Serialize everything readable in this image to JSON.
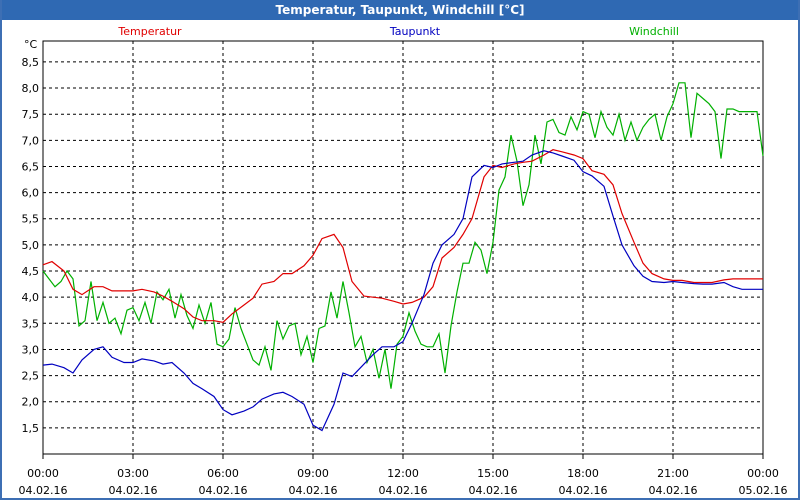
{
  "window": {
    "title": "Temperatur, Taupunkt, Windchill [°C]"
  },
  "colors": {
    "temperatur": "#e00000",
    "taupunkt": "#0000c0",
    "windchill": "#00b000",
    "grid": "#000000",
    "titlebar": "#2f69b3"
  },
  "chart_data": {
    "type": "line",
    "title": "Temperatur, Taupunkt, Windchill [°C]",
    "unit_label": "°C",
    "ylim": [
      1.0,
      8.9
    ],
    "yticks": [
      1.5,
      2.0,
      2.5,
      3.0,
      3.5,
      4.0,
      4.5,
      5.0,
      5.5,
      6.0,
      6.5,
      7.0,
      7.5,
      8.0,
      8.5
    ],
    "ytick_labels": [
      "1,5",
      "2,0",
      "2,5",
      "3,0",
      "3,5",
      "4,0",
      "4,5",
      "5,0",
      "5,5",
      "6,0",
      "6,5",
      "7,0",
      "7,5",
      "8,0",
      "8,5"
    ],
    "xlim": [
      0,
      24
    ],
    "xticks": [
      0,
      3,
      6,
      9,
      12,
      15,
      18,
      21,
      24
    ],
    "xtick_times": [
      "00:00",
      "03:00",
      "06:00",
      "09:00",
      "12:00",
      "15:00",
      "18:00",
      "21:00",
      "00:00"
    ],
    "xtick_dates": [
      "04.02.16",
      "04.02.16",
      "04.02.16",
      "04.02.16",
      "04.02.16",
      "04.02.16",
      "04.02.16",
      "04.02.16",
      "05.02.16"
    ],
    "grid": true,
    "legend_position": "top",
    "series": [
      {
        "name": "Temperatur",
        "x": [
          0,
          0.3,
          0.7,
          1,
          1.3,
          1.7,
          2,
          2.3,
          2.7,
          3,
          3.3,
          3.7,
          4,
          4.3,
          4.7,
          5,
          5.3,
          5.7,
          6,
          6.3,
          6.7,
          7,
          7.3,
          7.7,
          8,
          8.3,
          8.7,
          9,
          9.3,
          9.7,
          10,
          10.3,
          10.7,
          11,
          11.3,
          11.7,
          12,
          12.3,
          12.7,
          13,
          13.3,
          13.7,
          14,
          14.3,
          14.7,
          15,
          15.3,
          15.7,
          16,
          16.3,
          16.7,
          17,
          17.3,
          17.7,
          18,
          18.3,
          18.7,
          19,
          19.3,
          19.7,
          20,
          20.3,
          20.7,
          21,
          21.3,
          21.7,
          22,
          22.3,
          22.7,
          23,
          23.3,
          23.7,
          24
        ],
        "values": [
          4.62,
          4.68,
          4.5,
          4.15,
          4.05,
          4.2,
          4.2,
          4.12,
          4.12,
          4.12,
          4.15,
          4.1,
          4.02,
          3.92,
          3.78,
          3.62,
          3.55,
          3.55,
          3.52,
          3.68,
          3.85,
          3.98,
          4.25,
          4.3,
          4.45,
          4.45,
          4.6,
          4.8,
          5.12,
          5.2,
          4.95,
          4.3,
          4.02,
          4.0,
          3.98,
          3.92,
          3.87,
          3.9,
          4.0,
          4.2,
          4.75,
          4.95,
          5.2,
          5.5,
          6.3,
          6.52,
          6.48,
          6.55,
          6.58,
          6.6,
          6.72,
          6.82,
          6.78,
          6.72,
          6.65,
          6.42,
          6.35,
          6.15,
          5.6,
          5.05,
          4.65,
          4.45,
          4.35,
          4.32,
          4.32,
          4.28,
          4.28,
          4.28,
          4.33,
          4.35,
          4.35,
          4.35,
          4.35
        ]
      },
      {
        "name": "Taupunkt",
        "x": [
          0,
          0.3,
          0.7,
          1,
          1.3,
          1.7,
          2,
          2.3,
          2.7,
          3,
          3.3,
          3.7,
          4,
          4.3,
          4.7,
          5,
          5.3,
          5.7,
          6,
          6.3,
          6.7,
          7,
          7.3,
          7.7,
          8,
          8.3,
          8.7,
          9,
          9.3,
          9.7,
          10,
          10.3,
          10.7,
          11,
          11.3,
          11.7,
          12,
          12.3,
          12.7,
          13,
          13.3,
          13.7,
          14,
          14.3,
          14.7,
          15,
          15.3,
          15.7,
          16,
          16.3,
          16.7,
          17,
          17.3,
          17.7,
          18,
          18.3,
          18.7,
          19,
          19.3,
          19.7,
          20,
          20.3,
          20.7,
          21,
          21.3,
          21.7,
          22,
          22.3,
          22.7,
          23,
          23.3,
          23.7,
          24
        ],
        "values": [
          2.7,
          2.72,
          2.65,
          2.55,
          2.8,
          3.0,
          3.05,
          2.85,
          2.75,
          2.75,
          2.82,
          2.78,
          2.72,
          2.75,
          2.55,
          2.35,
          2.25,
          2.1,
          1.85,
          1.75,
          1.82,
          1.9,
          2.05,
          2.15,
          2.18,
          2.1,
          1.95,
          1.55,
          1.45,
          1.95,
          2.55,
          2.48,
          2.72,
          2.9,
          3.05,
          3.05,
          3.15,
          3.5,
          4.05,
          4.65,
          5.0,
          5.2,
          5.5,
          6.3,
          6.52,
          6.48,
          6.55,
          6.58,
          6.6,
          6.72,
          6.8,
          6.76,
          6.7,
          6.62,
          6.4,
          6.32,
          6.12,
          5.55,
          5.0,
          4.6,
          4.4,
          4.3,
          4.28,
          4.3,
          4.28,
          4.26,
          4.25,
          4.25,
          4.28,
          4.2,
          4.15,
          4.15,
          4.15
        ]
      },
      {
        "name": "Windchill",
        "x": [
          0,
          0.2,
          0.4,
          0.6,
          0.8,
          1,
          1.2,
          1.4,
          1.6,
          1.8,
          2,
          2.2,
          2.4,
          2.6,
          2.8,
          3,
          3.2,
          3.4,
          3.6,
          3.8,
          4,
          4.2,
          4.4,
          4.6,
          4.8,
          5,
          5.2,
          5.4,
          5.6,
          5.8,
          6,
          6.2,
          6.4,
          6.6,
          6.8,
          7,
          7.2,
          7.4,
          7.6,
          7.8,
          8,
          8.2,
          8.4,
          8.6,
          8.8,
          9,
          9.2,
          9.4,
          9.6,
          9.8,
          10,
          10.2,
          10.4,
          10.6,
          10.8,
          11,
          11.2,
          11.4,
          11.6,
          11.8,
          12,
          12.2,
          12.4,
          12.6,
          12.8,
          13,
          13.2,
          13.4,
          13.6,
          13.8,
          14,
          14.2,
          14.4,
          14.6,
          14.8,
          15,
          15.2,
          15.4,
          15.6,
          15.8,
          16,
          16.2,
          16.4,
          16.6,
          16.8,
          17,
          17.2,
          17.4,
          17.6,
          17.8,
          18,
          18.2,
          18.4,
          18.6,
          18.8,
          19,
          19.2,
          19.4,
          19.6,
          19.8,
          20,
          20.2,
          20.4,
          20.6,
          20.8,
          21,
          21.2,
          21.4,
          21.6,
          21.8,
          22,
          22.2,
          22.4,
          22.6,
          22.8,
          23,
          23.2,
          23.4,
          23.6,
          23.8,
          24
        ],
        "values": [
          4.5,
          4.35,
          4.2,
          4.3,
          4.5,
          4.35,
          3.45,
          3.55,
          4.3,
          3.55,
          3.9,
          3.5,
          3.6,
          3.3,
          3.75,
          3.8,
          3.55,
          3.9,
          3.5,
          4.1,
          3.95,
          4.15,
          3.6,
          4.05,
          3.65,
          3.4,
          3.85,
          3.5,
          3.9,
          3.1,
          3.05,
          3.2,
          3.8,
          3.4,
          3.1,
          2.8,
          2.7,
          3.05,
          2.6,
          3.55,
          3.2,
          3.45,
          3.5,
          2.9,
          3.25,
          2.75,
          3.4,
          3.45,
          4.1,
          3.6,
          4.3,
          3.7,
          3.05,
          3.25,
          2.75,
          3.0,
          2.45,
          3.0,
          2.25,
          3.1,
          3.25,
          3.7,
          3.35,
          3.1,
          3.05,
          3.05,
          3.3,
          2.55,
          3.45,
          4.1,
          4.65,
          4.65,
          5.05,
          4.9,
          4.45,
          5.05,
          6.05,
          6.3,
          7.1,
          6.6,
          5.75,
          6.15,
          7.1,
          6.55,
          7.35,
          7.4,
          7.15,
          7.1,
          7.45,
          7.2,
          7.55,
          7.5,
          7.05,
          7.55,
          7.25,
          7.1,
          7.5,
          7.0,
          7.35,
          7.0,
          7.25,
          7.4,
          7.5,
          7.0,
          7.45,
          7.7,
          8.1,
          8.1,
          7.05,
          7.9,
          7.8,
          7.7,
          7.55,
          6.65,
          7.6,
          7.6,
          7.55,
          7.55,
          7.55,
          7.55,
          6.7
        ]
      }
    ]
  }
}
